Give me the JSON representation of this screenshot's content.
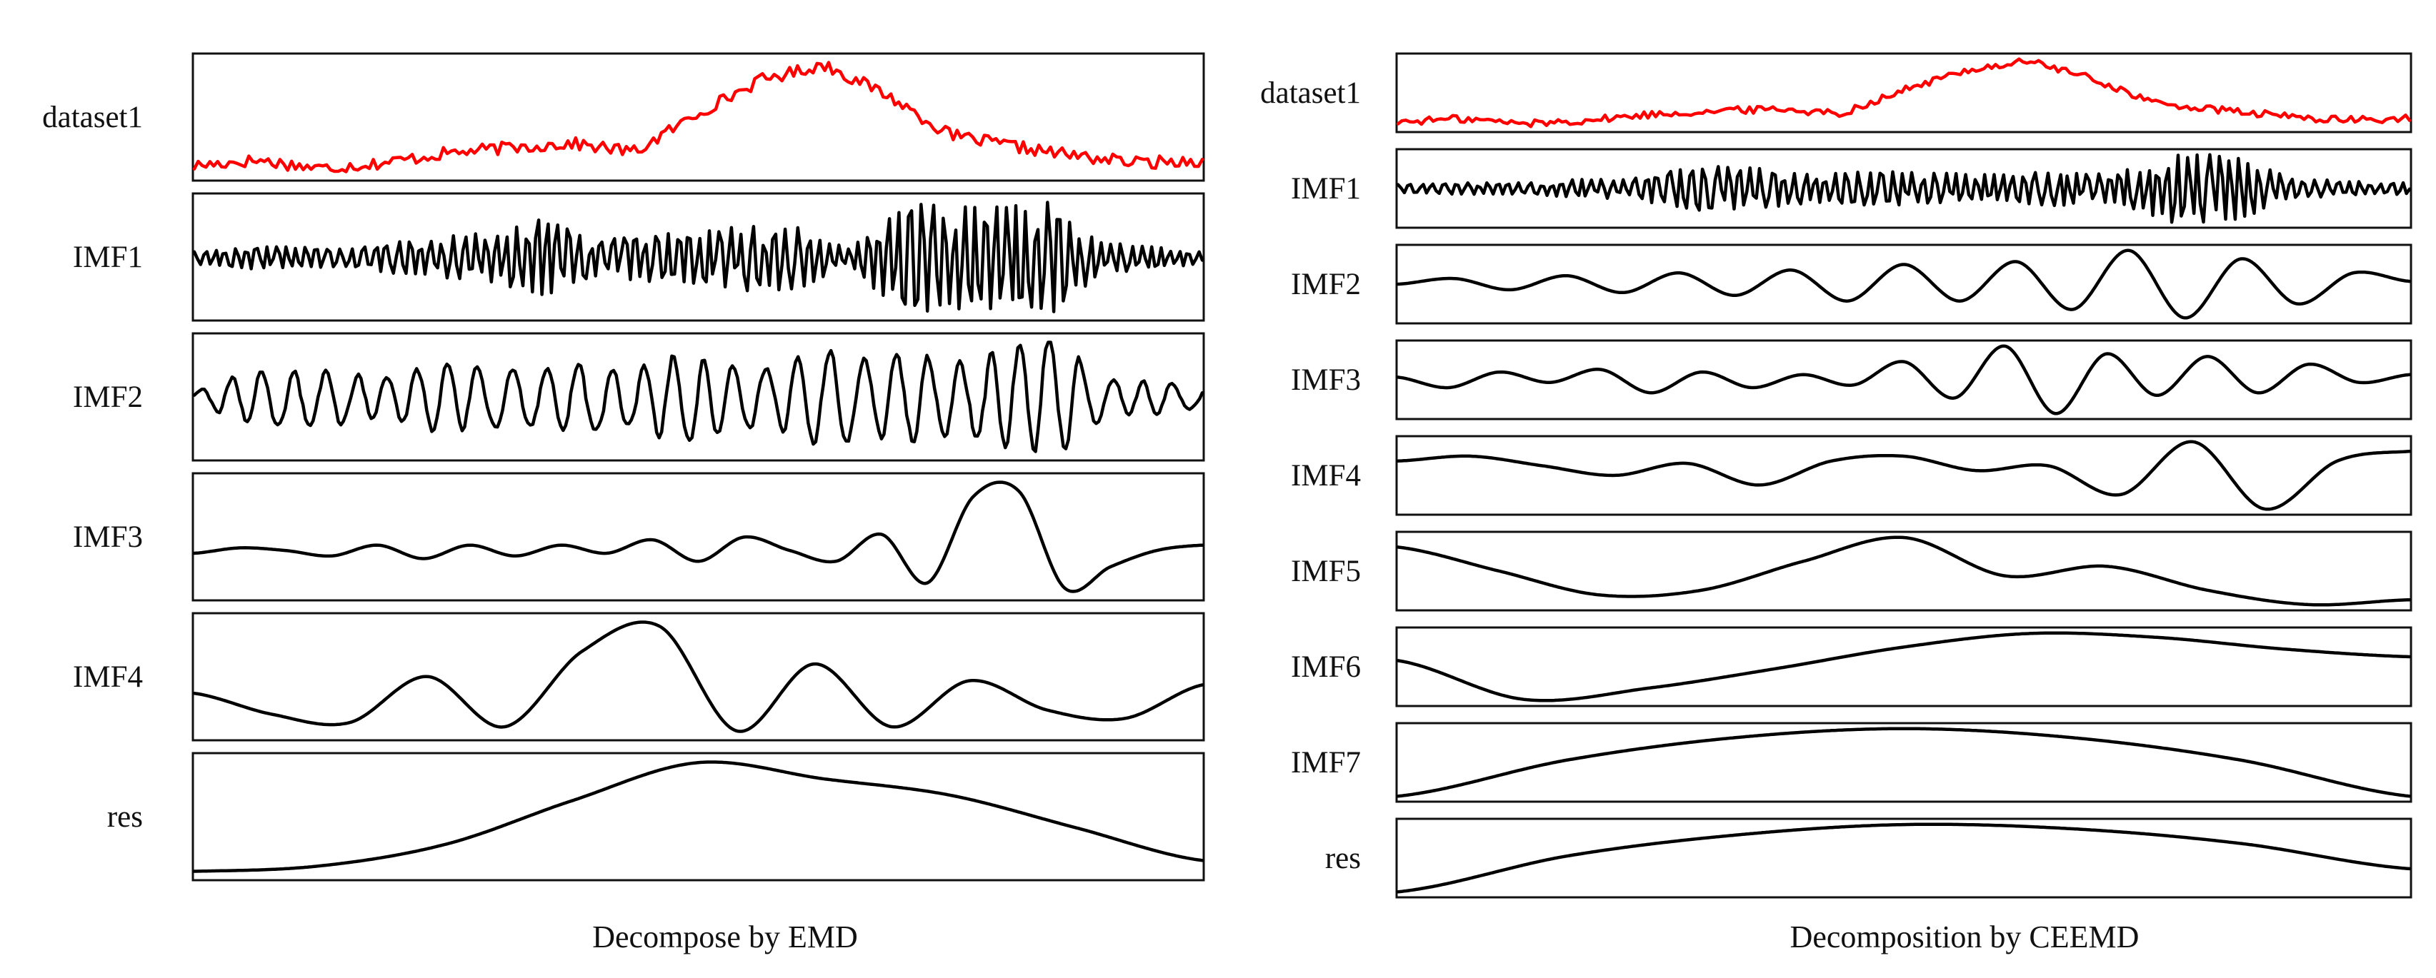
{
  "chart_data": [
    {
      "type": "line",
      "title": "Decompose by EMD",
      "grid": false,
      "line_color": "#000000",
      "original_color": "#ff0000",
      "panels": [
        {
          "label": "dataset1",
          "values": [
            1.0,
            1.4,
            0.8,
            1.2,
            1.9,
            2.3,
            2.6,
            2.0,
            4.8,
            7.2,
            8.3,
            6.1,
            3.2,
            2.4,
            1.7,
            1.2,
            1.4
          ]
        },
        {
          "label": "IMF1",
          "values": [
            0.0,
            0.1,
            -0.1,
            0.05,
            0.2,
            -0.3,
            0.45,
            -0.7,
            0.25,
            -0.35,
            0.4,
            -0.55,
            0.5,
            0.05,
            -1.0,
            0.9,
            -0.9,
            1.0,
            -0.2,
            0.1,
            0.0
          ]
        },
        {
          "label": "IMF2",
          "values": [
            0.0,
            0.25,
            -0.3,
            0.3,
            -0.2,
            0.4,
            -0.35,
            0.3,
            -0.4,
            0.3,
            0.55,
            -0.4,
            0.35,
            -0.6,
            0.5,
            -0.55,
            0.45,
            0.65,
            -0.7,
            0.2,
            -0.15,
            0.05
          ]
        },
        {
          "label": "IMF3",
          "values": [
            -0.05,
            0.05,
            0.0,
            -0.1,
            0.1,
            -0.15,
            0.1,
            -0.1,
            0.1,
            -0.05,
            0.2,
            -0.2,
            0.25,
            0.0,
            -0.2,
            0.3,
            -0.6,
            1.0,
            1.1,
            -0.7,
            -0.3,
            0.0,
            0.1
          ]
        },
        {
          "label": "IMF4",
          "values": [
            0.1,
            -0.15,
            -0.25,
            0.3,
            -0.3,
            0.6,
            0.9,
            -0.35,
            0.45,
            -0.3,
            0.25,
            -0.1,
            -0.2,
            0.2
          ]
        },
        {
          "label": "res",
          "values": [
            0.0,
            0.05,
            0.25,
            0.65,
            1.0,
            0.85,
            0.7,
            0.4,
            0.1
          ]
        }
      ]
    },
    {
      "type": "line",
      "title": "Decomposition by CEEMD",
      "grid": false,
      "line_color": "#000000",
      "original_color": "#ff0000",
      "panels": [
        {
          "label": "dataset1",
          "values": [
            1.0,
            1.4,
            0.8,
            1.2,
            1.9,
            2.3,
            2.6,
            2.0,
            4.8,
            7.2,
            8.3,
            6.1,
            3.2,
            2.4,
            1.7,
            1.2,
            1.4
          ]
        },
        {
          "label": "IMF1",
          "values": [
            0.0,
            0.05,
            -0.05,
            0.15,
            -0.2,
            0.6,
            -0.5,
            0.3,
            -0.4,
            0.35,
            -0.3,
            0.4,
            -0.3,
            0.9,
            -0.9,
            0.2,
            -0.1,
            0.05
          ]
        },
        {
          "label": "IMF2",
          "values": [
            0.0,
            0.1,
            -0.1,
            0.15,
            -0.15,
            0.2,
            -0.2,
            0.25,
            -0.3,
            0.35,
            -0.3,
            0.4,
            -0.45,
            0.6,
            -0.6,
            0.45,
            -0.35,
            0.2,
            0.05
          ]
        },
        {
          "label": "IMF3",
          "values": [
            0.0,
            -0.2,
            0.1,
            -0.1,
            0.15,
            -0.3,
            0.1,
            -0.2,
            0.05,
            -0.15,
            0.3,
            -0.4,
            0.6,
            -0.7,
            0.45,
            -0.35,
            0.4,
            -0.3,
            0.25,
            -0.1,
            0.05
          ]
        },
        {
          "label": "IMF4",
          "values": [
            0.2,
            0.3,
            0.1,
            -0.1,
            0.15,
            -0.3,
            0.2,
            0.3,
            0.0,
            0.1,
            -0.5,
            0.6,
            -0.8,
            0.2,
            0.4
          ]
        },
        {
          "label": "IMF5",
          "values": [
            0.6,
            0.1,
            -0.4,
            -0.3,
            0.3,
            0.8,
            0.0,
            0.2,
            -0.3,
            -0.6,
            -0.5
          ]
        },
        {
          "label": "IMF6",
          "values": [
            0.2,
            -0.8,
            -0.5,
            0.0,
            0.55,
            0.9,
            0.8,
            0.5,
            0.3
          ]
        },
        {
          "label": "IMF7",
          "values": [
            -0.6,
            0.2,
            0.7,
            0.9,
            0.7,
            0.2,
            -0.6
          ]
        },
        {
          "label": "res",
          "values": [
            -0.7,
            0.15,
            0.65,
            0.9,
            0.8,
            0.45,
            -0.15
          ]
        }
      ]
    }
  ]
}
